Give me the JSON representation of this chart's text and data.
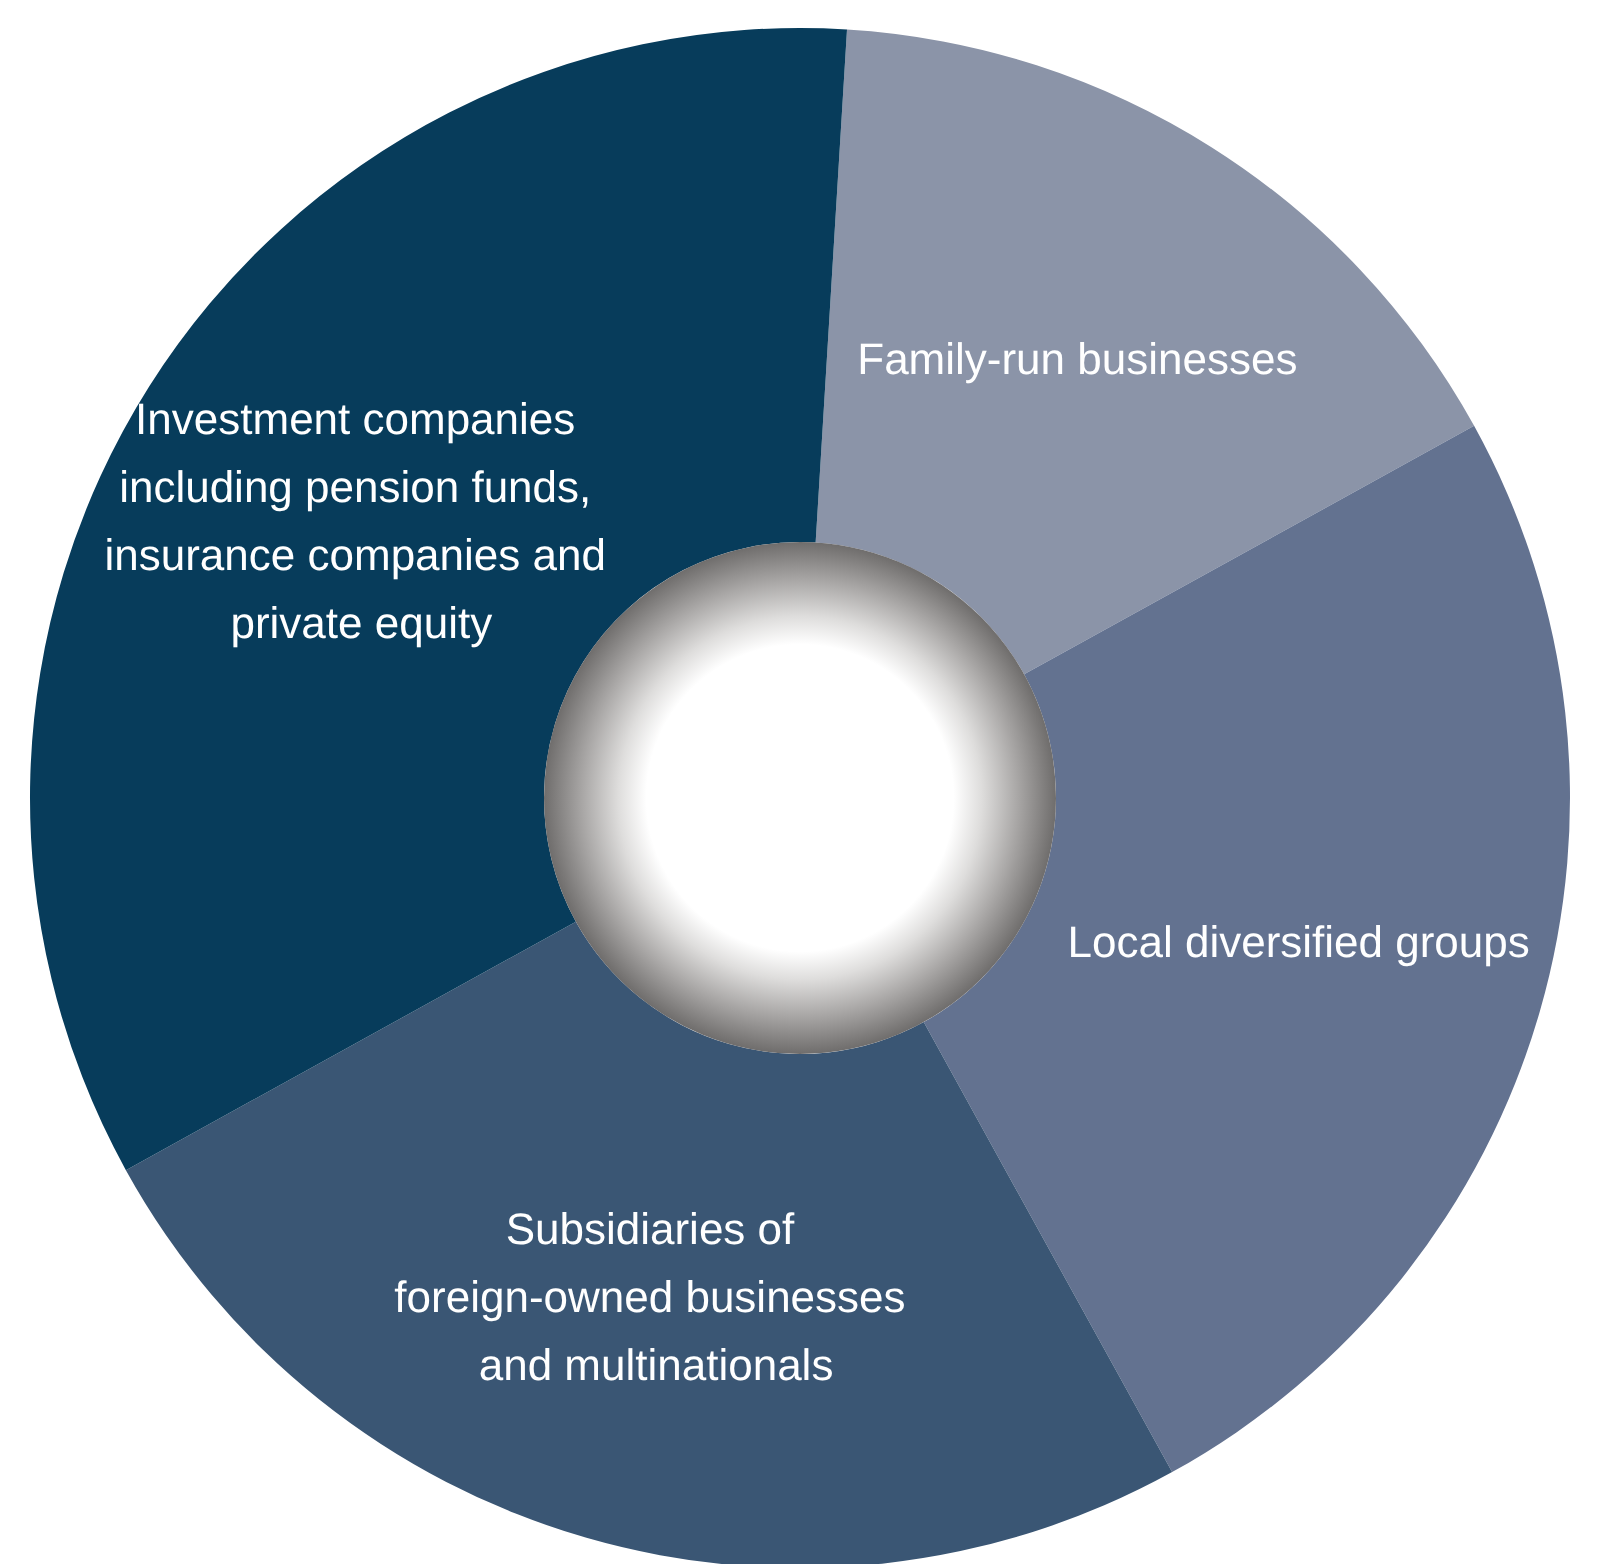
{
  "chart_data": {
    "type": "donut",
    "categories": [
      "Family-run businesses",
      "Local diversified groups",
      "Subsidiaries of foreign-owned businesses and multinationals",
      "Investment companies including pension funds, insurance companies and private equity"
    ],
    "values": [
      16,
      25,
      25,
      34
    ],
    "colors": [
      "#8b94a8",
      "#637290",
      "#3a5674",
      "#073c5b"
    ]
  }
}
